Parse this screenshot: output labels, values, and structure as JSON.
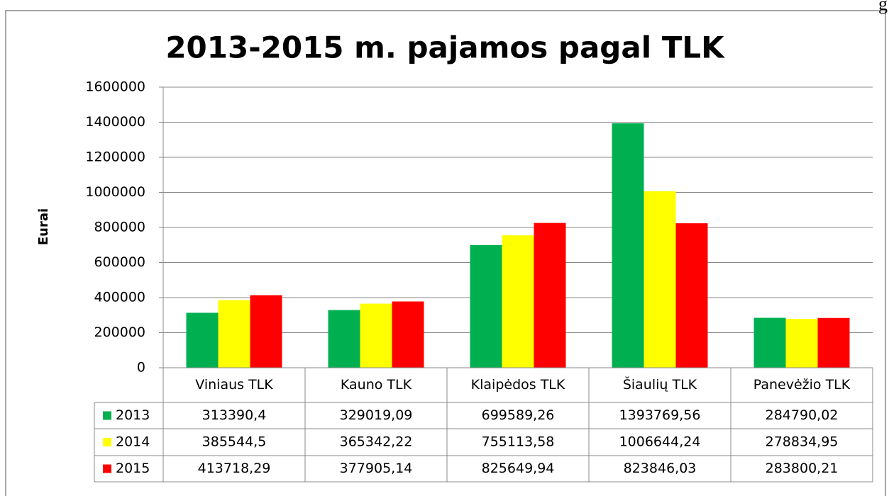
{
  "corner_text": "g",
  "chart_data": {
    "type": "bar",
    "title": "2013-2015 m. pajamos pagal TLK",
    "y_label": "Eurai",
    "categories": [
      "Viniaus TLK",
      "Kauno TLK",
      "Klaipėdos TLK",
      "Šiaulių TLK",
      "Panevėžio TLK"
    ],
    "series": [
      {
        "name": "2013",
        "color": "#00b050",
        "values": [
          313390.4,
          329019.09,
          699589.26,
          1393769.56,
          284790.02
        ],
        "value_labels": [
          "313390,4",
          "329019,09",
          "699589,26",
          "1393769,56",
          "284790,02"
        ]
      },
      {
        "name": "2014",
        "color": "#ffff00",
        "values": [
          385544.5,
          365342.22,
          755113.58,
          1006644.24,
          278834.95
        ],
        "value_labels": [
          "385544,5",
          "365342,22",
          "755113,58",
          "1006644,24",
          "278834,95"
        ]
      },
      {
        "name": "2015",
        "color": "#ff0000",
        "values": [
          413718.29,
          377905.14,
          825649.94,
          823846.03,
          283800.21
        ],
        "value_labels": [
          "413718,29",
          "377905,14",
          "825649,94",
          "823846,03",
          "283800,21"
        ]
      }
    ],
    "ylim": [
      0,
      1600000
    ],
    "yticks": [
      0,
      200000,
      400000,
      600000,
      800000,
      1000000,
      1200000,
      1400000,
      1600000
    ],
    "grid": true
  }
}
